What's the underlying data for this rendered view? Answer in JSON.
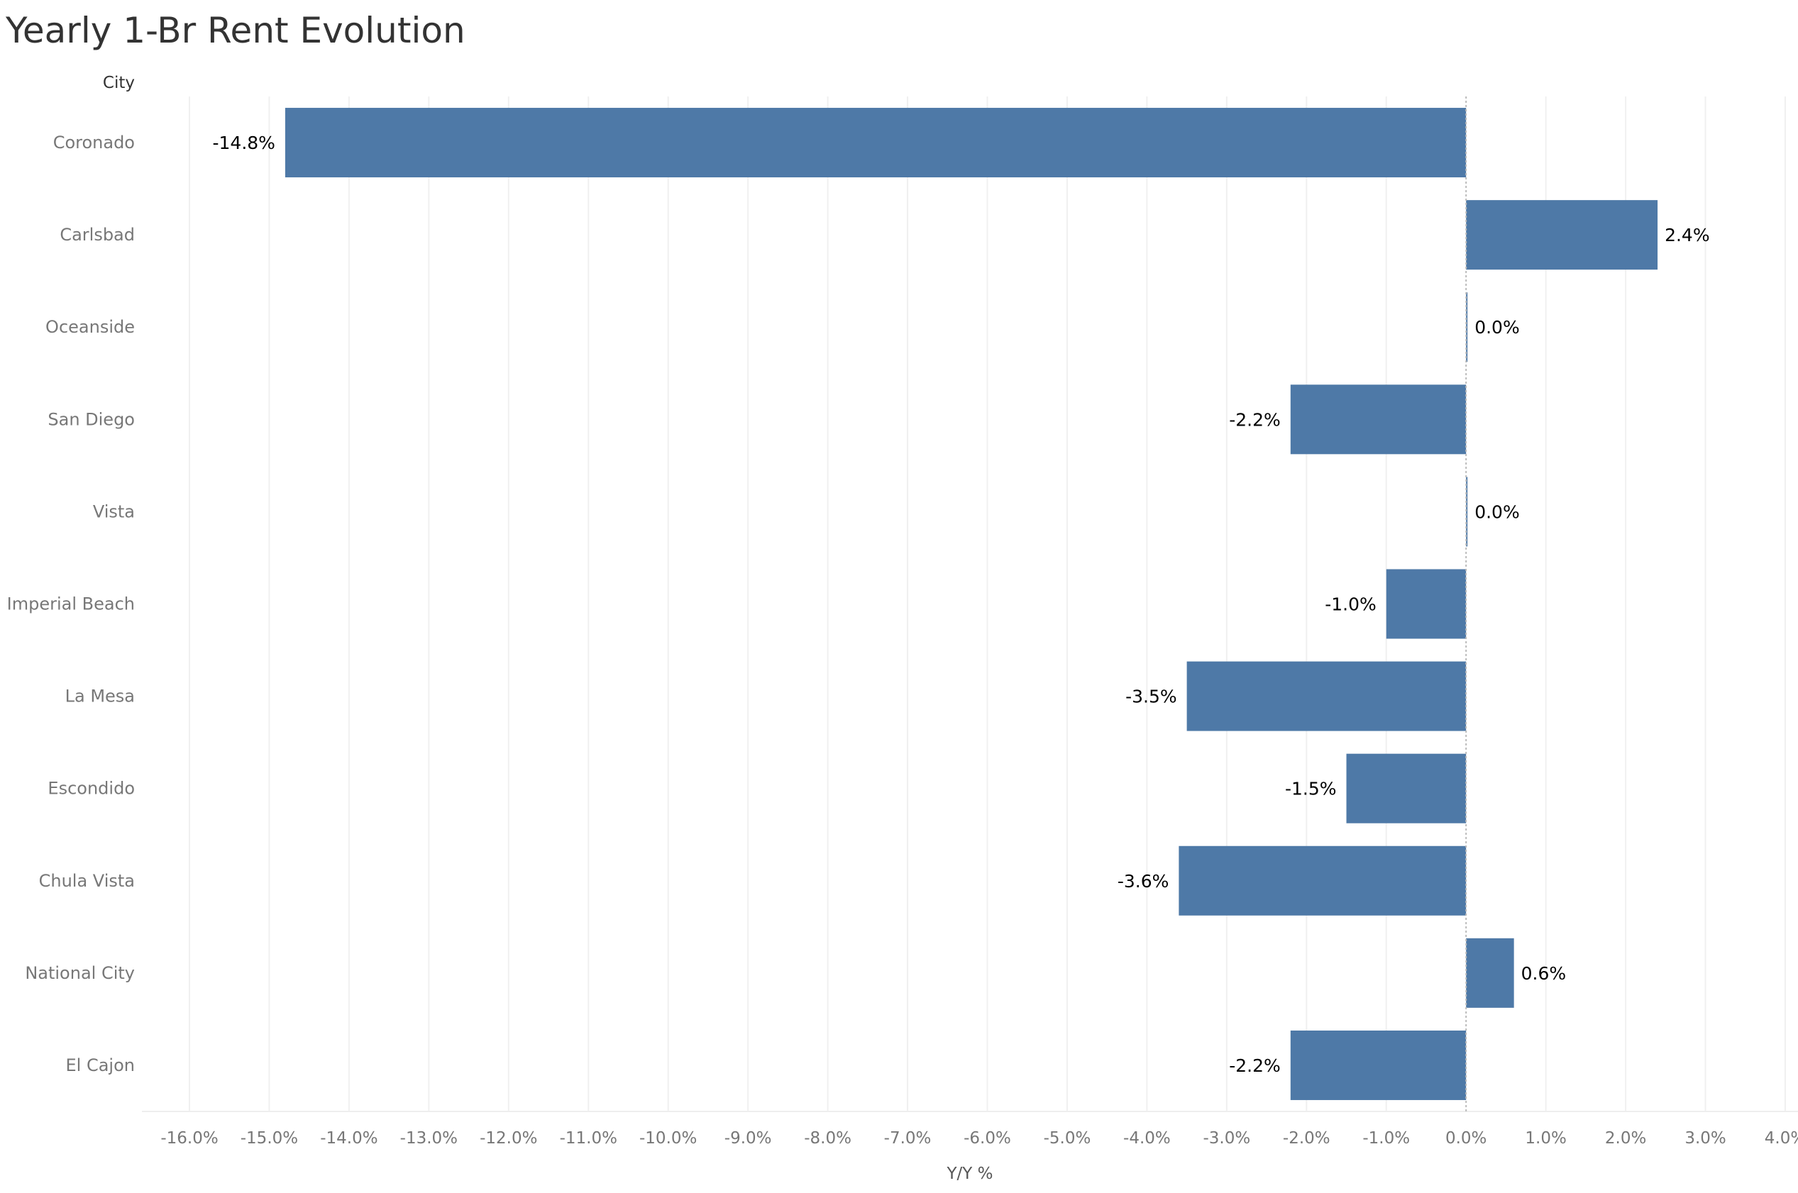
{
  "chart_data": {
    "type": "bar",
    "orientation": "horizontal",
    "title": "Yearly 1-Br Rent Evolution",
    "row_header": "City",
    "xlabel": "Y/Y %",
    "xlim": [
      -16.0,
      4.0
    ],
    "x_ticks": [
      -16,
      -15,
      -14,
      -13,
      -12,
      -11,
      -10,
      -9,
      -8,
      -7,
      -6,
      -5,
      -4,
      -3,
      -2,
      -1,
      0,
      1,
      2,
      3,
      4
    ],
    "x_tick_labels": [
      "-16.0%",
      "-15.0%",
      "-14.0%",
      "-13.0%",
      "-12.0%",
      "-11.0%",
      "-10.0%",
      "-9.0%",
      "-8.0%",
      "-7.0%",
      "-6.0%",
      "-5.0%",
      "-4.0%",
      "-3.0%",
      "-2.0%",
      "-1.0%",
      "0.0%",
      "1.0%",
      "2.0%",
      "3.0%",
      "4.0%"
    ],
    "categories": [
      "Coronado",
      "Carlsbad",
      "Oceanside",
      "San Diego",
      "Vista",
      "Imperial Beach",
      "La Mesa",
      "Escondido",
      "Chula Vista",
      "National City",
      "El Cajon"
    ],
    "values": [
      -14.8,
      2.4,
      0.0,
      -2.2,
      0.0,
      -1.0,
      -3.5,
      -1.5,
      -3.6,
      0.6,
      -2.2
    ],
    "data_labels": [
      "-14.8%",
      "2.4%",
      "0.0%",
      "-2.2%",
      "0.0%",
      "-1.0%",
      "-3.5%",
      "-1.5%",
      "-3.6%",
      "0.6%",
      "-2.2%"
    ],
    "grid": true,
    "bar_color": "#4e79a7",
    "gridline_color": "#f0f0f0",
    "zero_line_color": "#bbbbbb"
  }
}
